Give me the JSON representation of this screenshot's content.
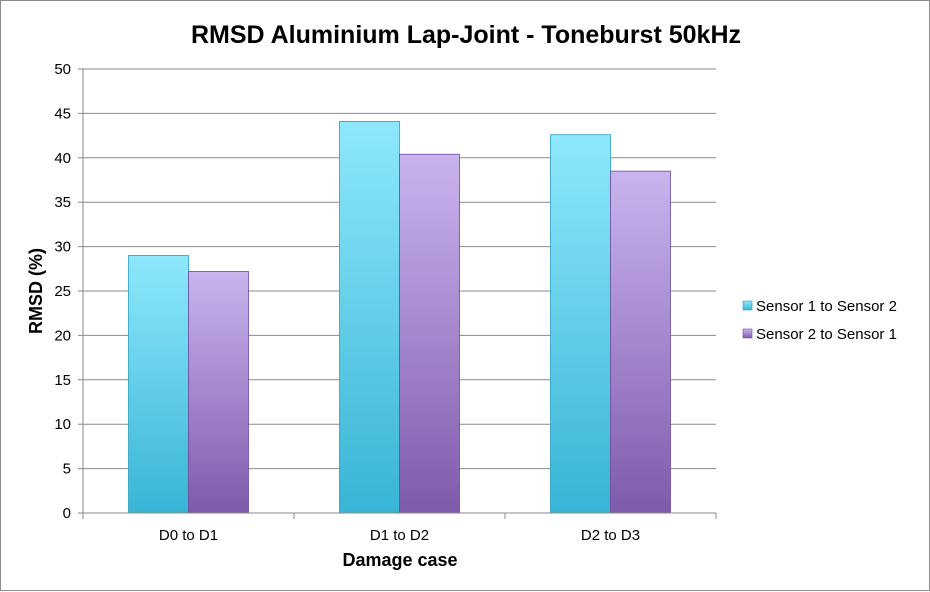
{
  "chart_data": {
    "type": "bar",
    "title": "RMSD Aluminium Lap-Joint - Toneburst 50kHz",
    "xlabel": "Damage case",
    "ylabel": "RMSD (%)",
    "categories": [
      "D0 to D1",
      "D1 to D2",
      "D2 to D3"
    ],
    "series": [
      {
        "name": "Sensor 1 to Sensor 2",
        "values": [
          29.0,
          44.1,
          42.6
        ],
        "color": "#4fc6df"
      },
      {
        "name": "Sensor 2 to Sensor 1",
        "values": [
          27.2,
          40.4,
          38.5
        ],
        "color": "#9a7dc4"
      }
    ],
    "ylim": [
      0,
      50
    ],
    "yticks": [
      0,
      5,
      10,
      15,
      20,
      25,
      30,
      35,
      40,
      45,
      50
    ],
    "grid": true,
    "legend": "right"
  }
}
